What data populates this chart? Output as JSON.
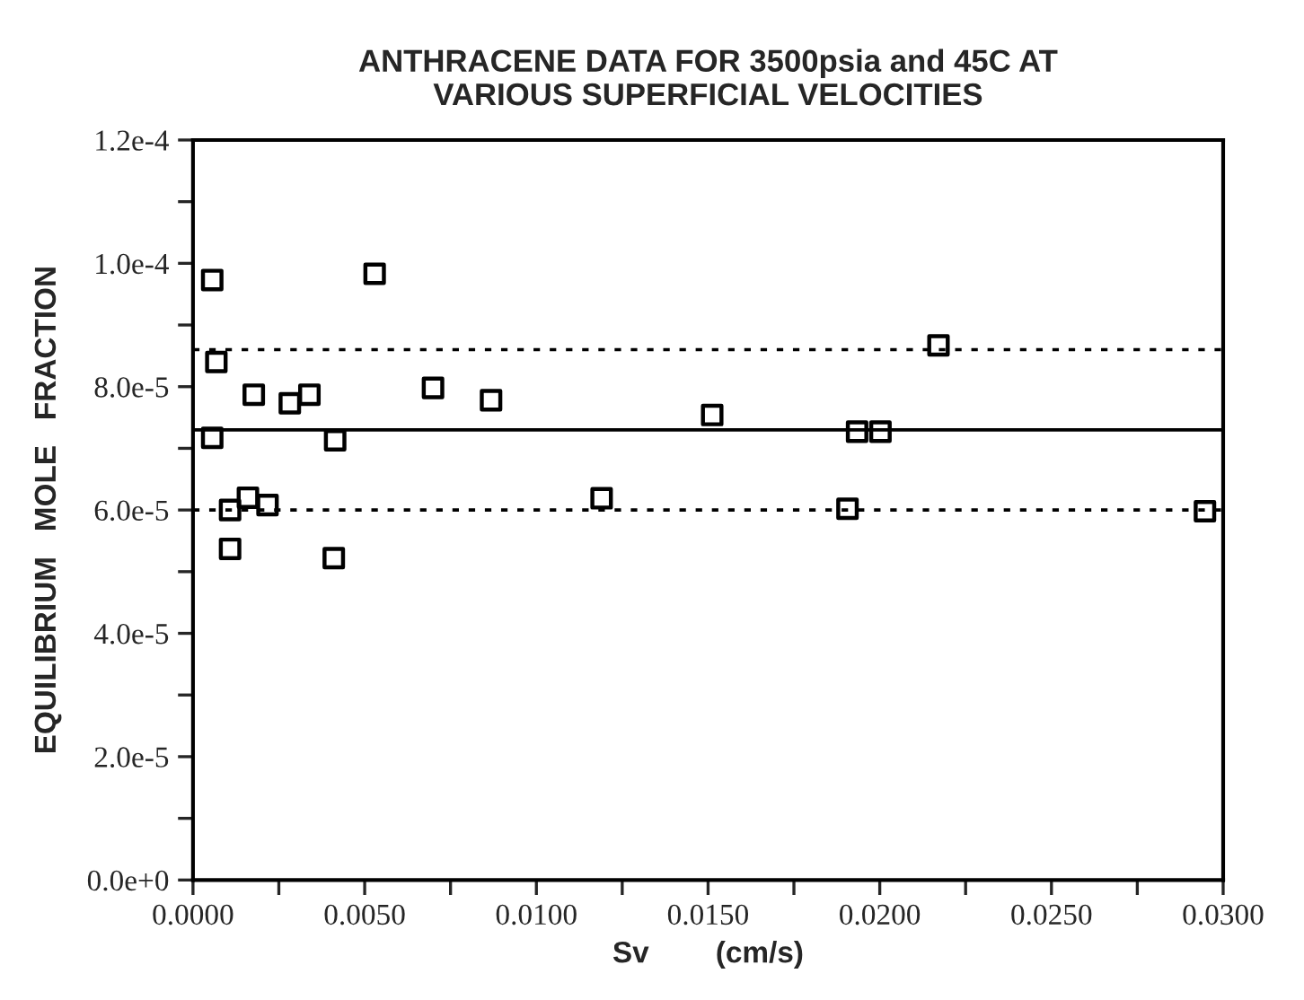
{
  "chart_data": {
    "type": "scatter",
    "title": "ANTHRACENE DATA FOR 3500psia and 45C AT\nVARIOUS SUPERFICIAL VELOCITIES",
    "xlabel": "Sv        (cm/s)",
    "ylabel": "EQUILIBRIUM   MOLE   FRACTION",
    "series": [
      {
        "color": "#000000",
        "x": [
          0.00056,
          0.00529,
          0.00068,
          0.00177,
          0.00282,
          0.00339,
          0.00699,
          0.00868,
          0.00056,
          0.00414,
          0.0016,
          0.00108,
          0.00217,
          0.00108,
          0.0041,
          0.02171,
          0.01512,
          0.01934,
          0.02002,
          0.0119,
          0.01906,
          0.02947
        ],
        "values": [
          9.73e-05,
          9.83e-05,
          8.4e-05,
          7.87e-05,
          7.73e-05,
          7.87e-05,
          7.98e-05,
          7.78e-05,
          7.17e-05,
          7.13e-05,
          6.2e-05,
          6e-05,
          6.08e-05,
          5.37e-05,
          5.22e-05,
          8.67e-05,
          7.54e-05,
          7.27e-05,
          7.27e-05,
          6.19e-05,
          6.02e-05,
          5.98e-05
        ]
      }
    ],
    "marker": "square",
    "xlim": [
      0.0,
      0.03
    ],
    "ylim": [
      0.0,
      0.00012
    ],
    "xticks": [
      {
        "value": 0.0,
        "label": "0.0000"
      },
      {
        "value": 0.0025,
        "label": null
      },
      {
        "value": 0.005,
        "label": "0.0050"
      },
      {
        "value": 0.0075,
        "label": null
      },
      {
        "value": 0.01,
        "label": "0.0100"
      },
      {
        "value": 0.0125,
        "label": null
      },
      {
        "value": 0.015,
        "label": "0.0150"
      },
      {
        "value": 0.0175,
        "label": null
      },
      {
        "value": 0.02,
        "label": "0.0200"
      },
      {
        "value": 0.0225,
        "label": null
      },
      {
        "value": 0.025,
        "label": "0.0250"
      },
      {
        "value": 0.0275,
        "label": null
      },
      {
        "value": 0.03,
        "label": "0.0300"
      }
    ],
    "yticks": [
      {
        "value": 0.0,
        "label": "0.0e+0"
      },
      {
        "value": 1e-05,
        "label": null
      },
      {
        "value": 2e-05,
        "label": "2.0e-5"
      },
      {
        "value": 3e-05,
        "label": null
      },
      {
        "value": 4e-05,
        "label": "4.0e-5"
      },
      {
        "value": 5e-05,
        "label": null
      },
      {
        "value": 6e-05,
        "label": "6.0e-5"
      },
      {
        "value": 7e-05,
        "label": null
      },
      {
        "value": 8e-05,
        "label": "8.0e-5"
      },
      {
        "value": 9e-05,
        "label": null
      },
      {
        "value": 0.0001,
        "label": "1.0e-4"
      },
      {
        "value": 0.00011,
        "label": null
      },
      {
        "value": 0.00012,
        "label": "1.2e-4"
      }
    ],
    "ref_lines": [
      {
        "axis": "y",
        "value": 8.6e-05,
        "line_style": "dotted",
        "color": "#000000"
      },
      {
        "axis": "y",
        "value": 7.3e-05,
        "line_style": "solid",
        "color": "#000000"
      },
      {
        "axis": "y",
        "value": 6e-05,
        "line_style": "dotted",
        "color": "#000000"
      }
    ],
    "grid": false,
    "legend": false
  }
}
